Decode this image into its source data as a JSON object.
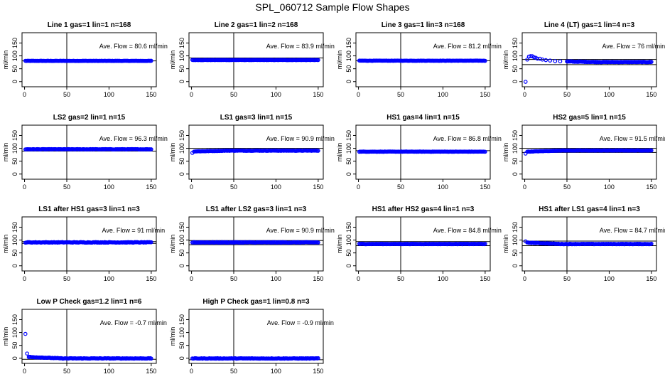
{
  "title": "SPL_060712  Sample Flow Shapes",
  "colors": {
    "points": "#0000ff",
    "axis": "#000000"
  },
  "shared_axes": {
    "ylabel": "ml/min",
    "xlim": [
      -3,
      156
    ],
    "ylim": [
      -20,
      190
    ],
    "xticks": [
      0,
      50,
      100,
      150
    ],
    "yticks": [
      0,
      50,
      100,
      150
    ],
    "vline_x": 50
  },
  "chart_data": [
    {
      "type": "scatter",
      "title": "Line 1 gas=1 lin=1 n=168",
      "annotation": "Ave. Flow =  80.6  ml/min",
      "base": 80.6,
      "ref_lines": [
        80.6
      ],
      "start": [],
      "noise": 0.5
    },
    {
      "type": "scatter",
      "title": "Line 2 gas=1 lin=2 n=168",
      "annotation": "Ave. Flow =  83.9  ml/min",
      "base": 83.9,
      "ref_lines": [
        92
      ],
      "start": [],
      "noise": 0.5
    },
    {
      "type": "scatter",
      "title": "Line 3 gas=1 lin=3 n=168",
      "annotation": "Ave. Flow =  81.2  ml/min",
      "base": 81.2,
      "ref_lines": [
        81.2
      ],
      "start": [],
      "noise": 0.5
    },
    {
      "type": "scatter",
      "title": "Line 4 (LT) gas=1 lin=4 n=3",
      "annotation": "Ave. Flow =  76  ml/min",
      "base": 76,
      "ref_lines": [
        86,
        66
      ],
      "start": [
        [
          1,
          0
        ],
        [
          3,
          85
        ],
        [
          5,
          98
        ],
        [
          7,
          100
        ],
        [
          9,
          98
        ],
        [
          11,
          95
        ],
        [
          13,
          92
        ],
        [
          15,
          90
        ],
        [
          18,
          88
        ],
        [
          21,
          86
        ],
        [
          25,
          84
        ],
        [
          30,
          82
        ],
        [
          36,
          80
        ],
        [
          42,
          79
        ],
        [
          50,
          78
        ]
      ],
      "noise": 1
    },
    {
      "type": "scatter",
      "title": "LS2 gas=2 lin=1 n=15",
      "annotation": "Ave. Flow =  96.3  ml/min",
      "base": 96.3,
      "ref_lines": [
        89
      ],
      "start": [],
      "noise": 0.8
    },
    {
      "type": "scatter",
      "title": "LS1 gas=3 lin=1 n=15",
      "annotation": "Ave. Flow =  90.9  ml/min",
      "base": 91,
      "ref_lines": [
        100
      ],
      "start": [
        [
          1,
          82
        ],
        [
          3,
          88
        ]
      ],
      "noise": 0.8
    },
    {
      "type": "scatter",
      "title": "HS1 gas=4 lin=1 n=15",
      "annotation": "Ave. Flow =  86.8  ml/min",
      "base": 87,
      "ref_lines": [
        91
      ],
      "start": [],
      "noise": 0.6
    },
    {
      "type": "scatter",
      "title": "HS2 gas=5 lin=1 n=15",
      "annotation": "Ave. Flow =  91.5  ml/min",
      "base": 91.5,
      "ref_lines": [
        100,
        84
      ],
      "start": [
        [
          1,
          80
        ],
        [
          3,
          87
        ]
      ],
      "noise": 0.6
    },
    {
      "type": "scatter",
      "title": "LS1 after HS1 gas=3 lin=1 n=3",
      "annotation": "Ave. Flow =  91  ml/min",
      "base": 91,
      "ref_lines": [
        94,
        87
      ],
      "start": [],
      "noise": 1.2
    },
    {
      "type": "scatter",
      "title": "LS1 after LS2 gas=3 lin=1 n=3",
      "annotation": "Ave. Flow =  90.9  ml/min",
      "base": 90.9,
      "ref_lines": [
        98,
        82
      ],
      "start": [],
      "noise": 1.2
    },
    {
      "type": "scatter",
      "title": "HS1 after HS2 gas=4 lin=1 n=3",
      "annotation": "Ave. Flow =  84.8  ml/min",
      "base": 84.8,
      "ref_lines": [
        94,
        78
      ],
      "start": [],
      "noise": 1
    },
    {
      "type": "scatter",
      "title": "HS1 after LS1 gas=4 lin=1 n=3",
      "annotation": "Ave. Flow =  84.7  ml/min",
      "base": 84.7,
      "ref_lines": [
        96,
        78
      ],
      "start": [
        [
          1,
          94
        ],
        [
          3,
          90
        ]
      ],
      "noise": 1
    },
    {
      "type": "scatter",
      "title": "Low P Check gas=1.2 lin=1 n=6",
      "annotation": "Ave. Flow =  -0.7  ml/min",
      "base": -0.7,
      "ref_lines": [
        -4
      ],
      "start": [
        [
          1,
          95
        ],
        [
          3,
          18
        ],
        [
          5,
          5
        ]
      ],
      "noise": 1
    },
    {
      "type": "scatter",
      "title": "High P Check gas=1 lin=0.8 n=3",
      "annotation": "Ave. Flow =  -0.9  ml/min",
      "base": -0.9,
      "ref_lines": [
        -6
      ],
      "start": [],
      "noise": 1
    }
  ]
}
